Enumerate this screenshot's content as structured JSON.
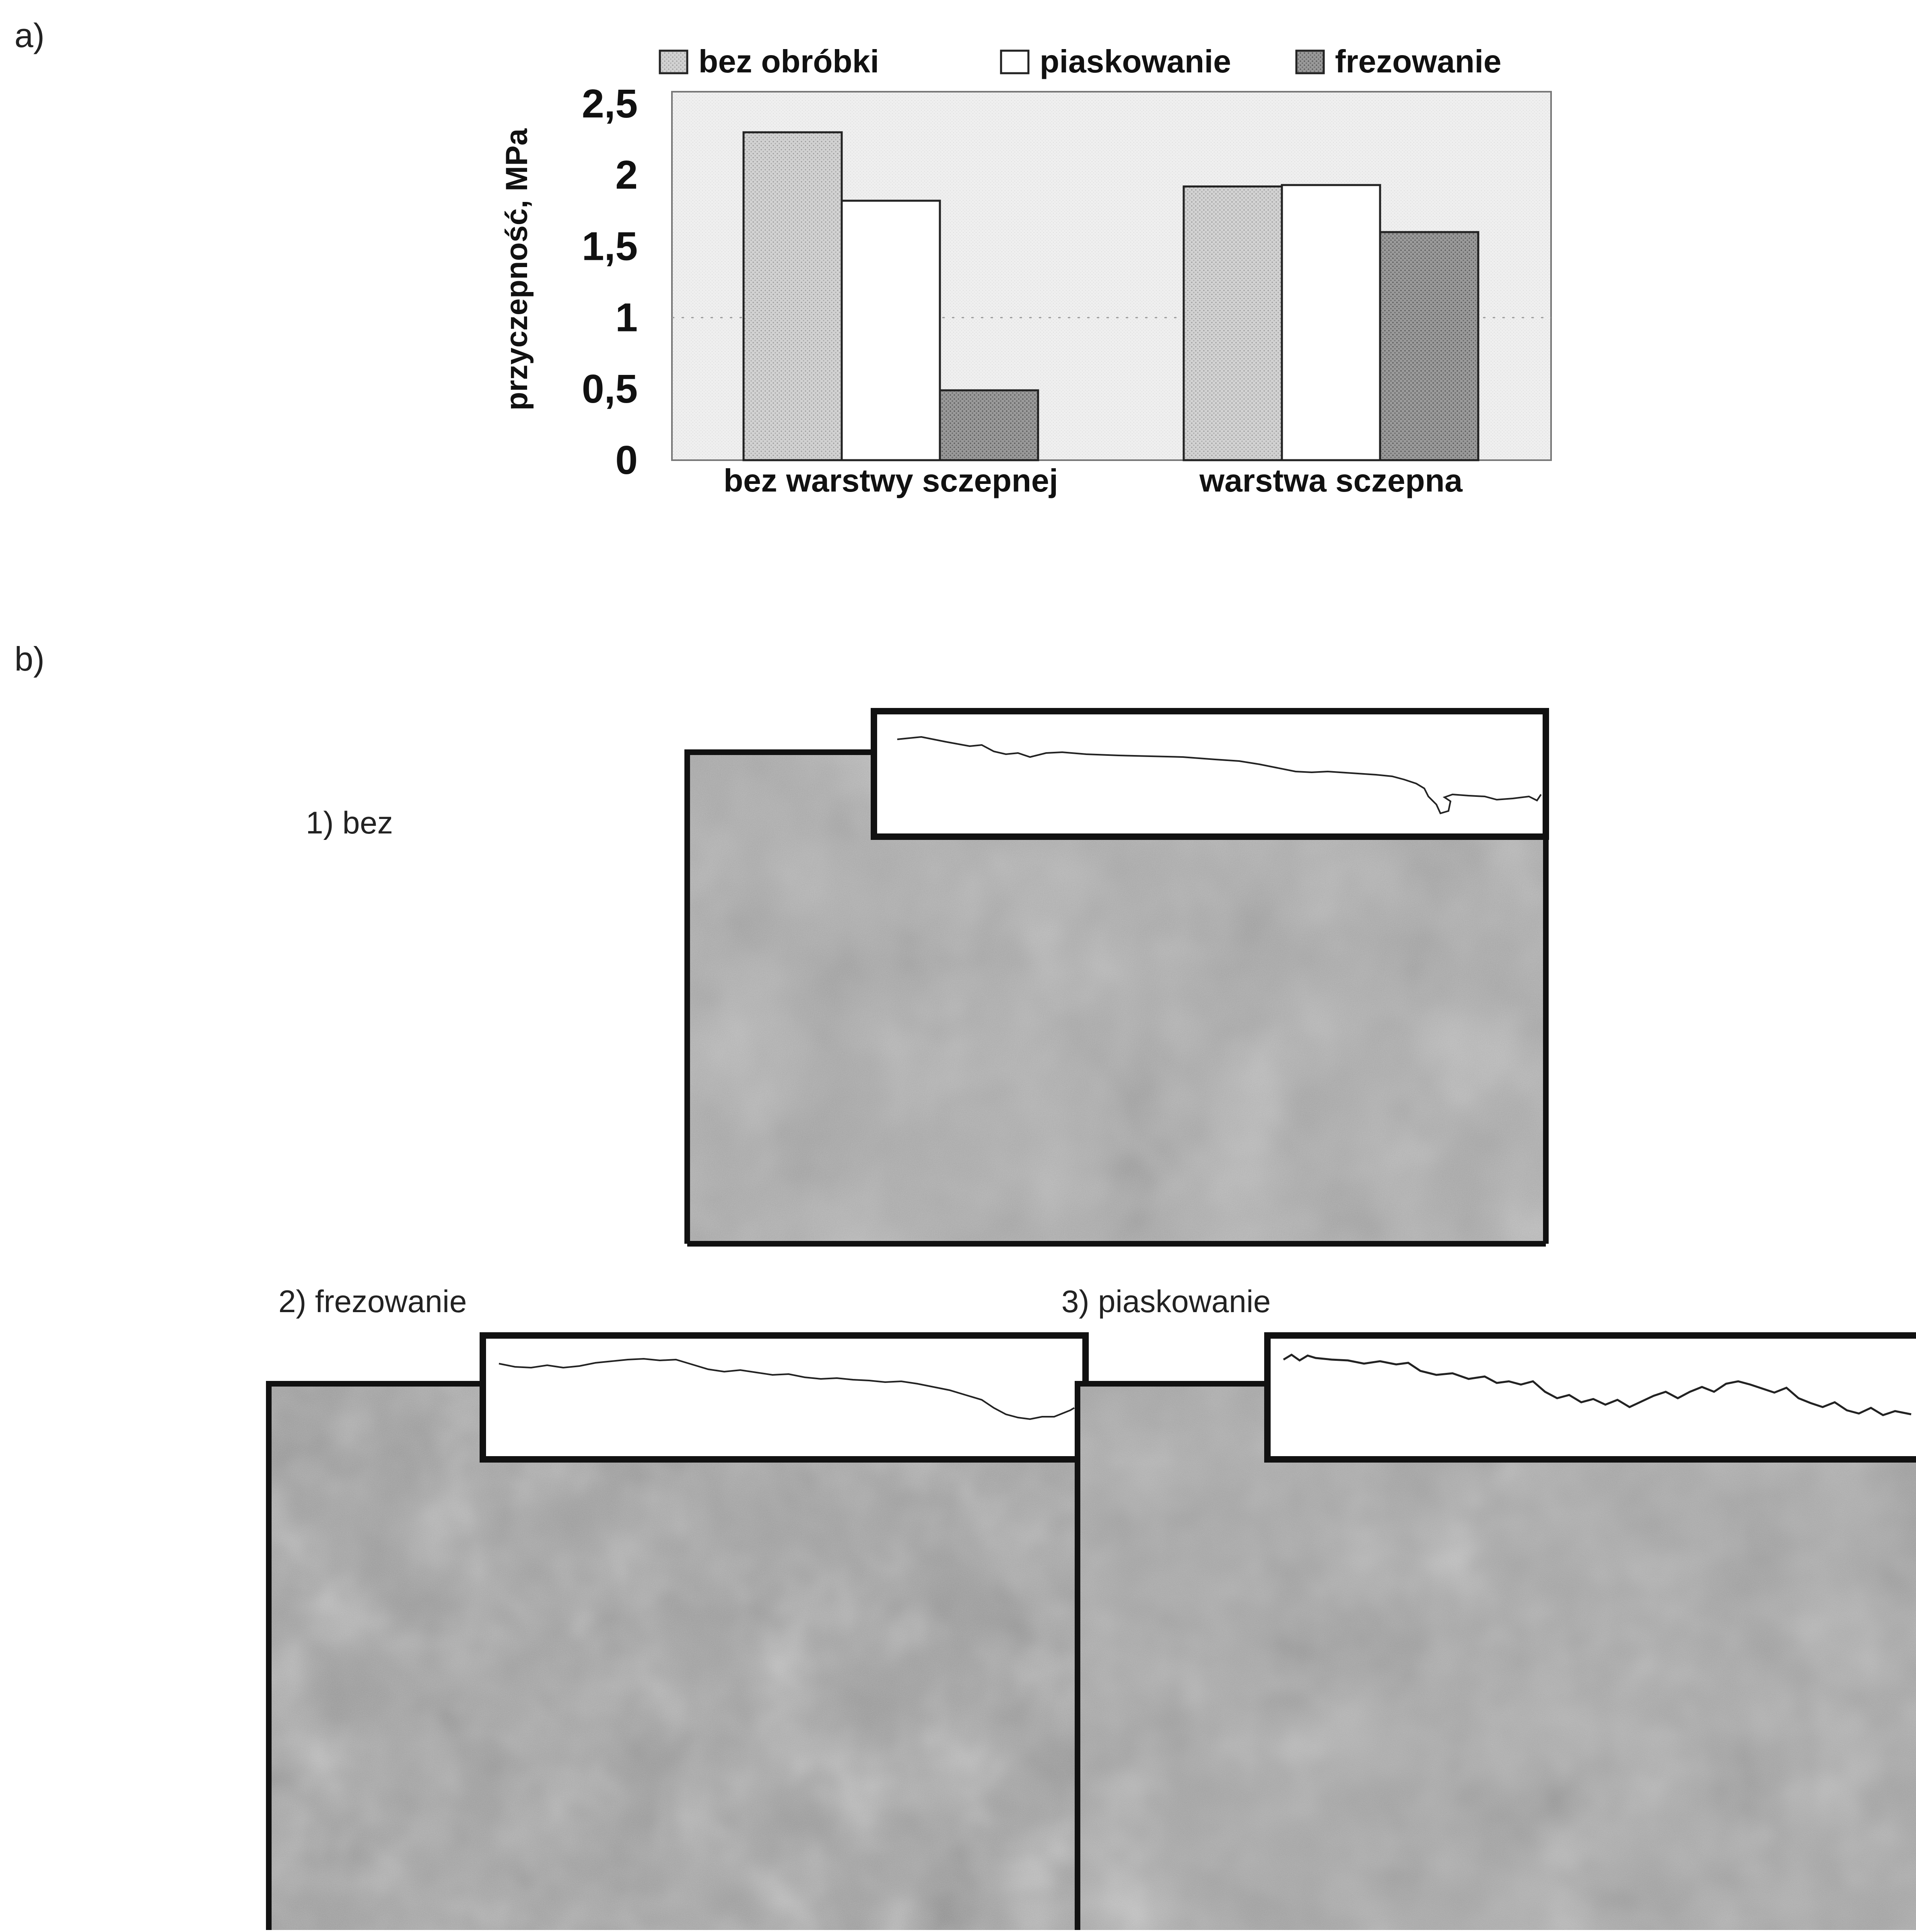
{
  "panels": {
    "a_label": "a)",
    "b_label": "b)"
  },
  "chart_data": {
    "type": "bar",
    "categories": [
      "bez warstwy sczepnej",
      "warstwa sczepna"
    ],
    "series": [
      {
        "name": "bez obróbki",
        "values": [
          2.3,
          1.92
        ],
        "color": "#c8c8c8",
        "pattern": "dotted-light"
      },
      {
        "name": "piaskowanie",
        "values": [
          1.82,
          1.93
        ],
        "color": "#ffffff",
        "pattern": "none"
      },
      {
        "name": "frezowanie",
        "values": [
          0.49,
          1.6
        ],
        "color": "#8e8e8e",
        "pattern": "dotted-dark"
      }
    ],
    "ylabel": "przyczepność, MPa",
    "yticks": [
      "0",
      "0,5",
      "1",
      "1,5",
      "2",
      "2,5"
    ],
    "ylim": [
      0,
      2.5
    ],
    "legend_position": "top",
    "grid": true
  },
  "micrographs": [
    {
      "label": "1) bez",
      "tone": "#a8a8a8"
    },
    {
      "label": "2) frezowanie",
      "tone": "#9a9a9a"
    },
    {
      "label": "3) piaskowanie",
      "tone": "#a0a0a0"
    }
  ]
}
